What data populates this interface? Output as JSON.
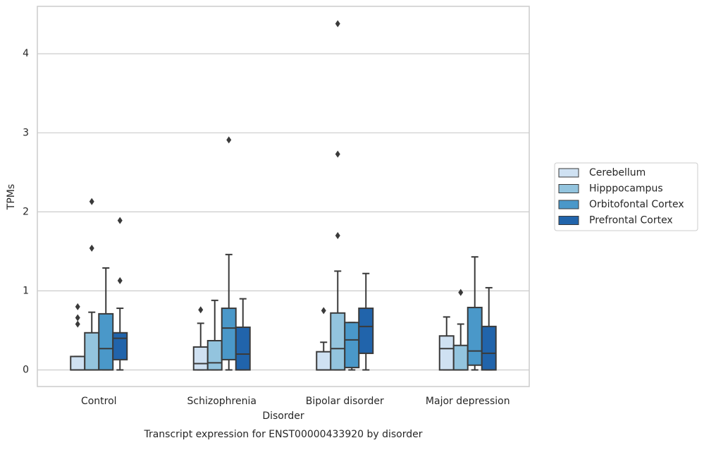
{
  "chart_data": {
    "type": "box",
    "title": "Transcript expression for ENST00000433920 by disorder",
    "x_label": "Disorder",
    "y_label": "TPMs",
    "categories": [
      "Control",
      "Schizophrenia",
      "Bipolar disorder",
      "Major depression"
    ],
    "ylim": [
      -0.21,
      4.6
    ],
    "yticks": [
      0,
      1,
      2,
      3,
      4
    ],
    "grid": true,
    "legend": "right",
    "series": [
      {
        "name": "Cerebellum",
        "color": "#cfe1f2",
        "values": [
          {
            "low": 0,
            "q1": 0,
            "median": 0,
            "q3": 0.17,
            "high": 0.17,
            "outliers": [
              0.8,
              0.66,
              0.58
            ]
          },
          {
            "low": 0,
            "q1": 0,
            "median": 0.08,
            "q3": 0.29,
            "high": 0.59,
            "outliers": [
              0.76
            ]
          },
          {
            "low": 0,
            "q1": 0,
            "median": 0,
            "q3": 0.23,
            "high": 0.35,
            "outliers": [
              0.75
            ]
          },
          {
            "low": 0,
            "q1": 0,
            "median": 0.27,
            "q3": 0.43,
            "high": 0.67,
            "outliers": []
          }
        ]
      },
      {
        "name": "Hipppocampus",
        "color": "#93c4de",
        "values": [
          {
            "low": 0,
            "q1": 0,
            "median": 0,
            "q3": 0.47,
            "high": 0.73,
            "outliers": [
              2.13,
              1.54
            ]
          },
          {
            "low": 0,
            "q1": 0,
            "median": 0.09,
            "q3": 0.37,
            "high": 0.88,
            "outliers": []
          },
          {
            "low": 0,
            "q1": 0,
            "median": 0.27,
            "q3": 0.72,
            "high": 1.25,
            "outliers": [
              4.38,
              2.73,
              1.7
            ]
          },
          {
            "low": 0,
            "q1": 0,
            "median": 0,
            "q3": 0.31,
            "high": 0.58,
            "outliers": [
              0.98
            ]
          }
        ]
      },
      {
        "name": "Orbitofontal Cortex",
        "color": "#4a98c9",
        "values": [
          {
            "low": 0,
            "q1": 0,
            "median": 0.27,
            "q3": 0.71,
            "high": 1.29,
            "outliers": []
          },
          {
            "low": 0,
            "q1": 0.13,
            "median": 0.53,
            "q3": 0.78,
            "high": 1.46,
            "outliers": [
              2.91
            ]
          },
          {
            "low": 0,
            "q1": 0.03,
            "median": 0.38,
            "q3": 0.6,
            "high": 0.6,
            "outliers": []
          },
          {
            "low": 0,
            "q1": 0.06,
            "median": 0.24,
            "q3": 0.79,
            "high": 1.43,
            "outliers": []
          }
        ]
      },
      {
        "name": "Prefrontal Cortex",
        "color": "#2164ab",
        "values": [
          {
            "low": 0,
            "q1": 0.13,
            "median": 0.4,
            "q3": 0.47,
            "high": 0.78,
            "outliers": [
              1.89,
              1.13
            ]
          },
          {
            "low": 0,
            "q1": 0,
            "median": 0.2,
            "q3": 0.54,
            "high": 0.9,
            "outliers": []
          },
          {
            "low": 0,
            "q1": 0.21,
            "median": 0.55,
            "q3": 0.78,
            "high": 1.22,
            "outliers": []
          },
          {
            "low": 0,
            "q1": 0,
            "median": 0.21,
            "q3": 0.55,
            "high": 1.04,
            "outliers": []
          }
        ]
      }
    ]
  }
}
